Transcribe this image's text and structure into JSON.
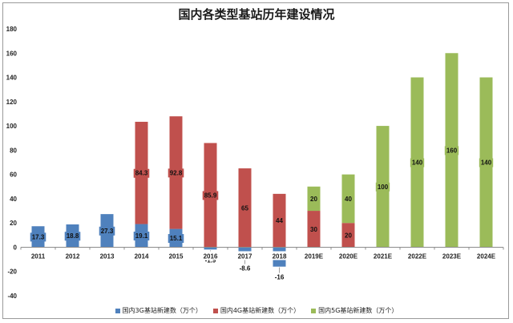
{
  "chart_data": {
    "type": "bar",
    "stacked": true,
    "title": "国内各类型基站历年建设情况",
    "categories": [
      "2011",
      "2012",
      "2013",
      "2014",
      "2015",
      "2016",
      "2017",
      "2018",
      "2019E",
      "2020E",
      "2021E",
      "2022E",
      "2023E",
      "2024E"
    ],
    "series": [
      {
        "name": "国内3G基站新建数（万个）",
        "color": "#4f81bd",
        "values": [
          17.3,
          18.8,
          27.3,
          19.1,
          15.1,
          -1.9,
          -8.6,
          -16,
          null,
          null,
          null,
          null,
          null,
          null
        ]
      },
      {
        "name": "国内4G基站新建数（万个）",
        "color": "#c0504d",
        "values": [
          null,
          null,
          null,
          84.3,
          92.8,
          85.9,
          65,
          44,
          30,
          20,
          null,
          null,
          null,
          null
        ]
      },
      {
        "name": "国内5G基站新建数（万个）",
        "color": "#9bbb59",
        "values": [
          null,
          null,
          null,
          null,
          null,
          null,
          null,
          null,
          20,
          40,
          100,
          140,
          160,
          140
        ]
      }
    ],
    "ylim": [
      -40,
      180
    ],
    "yticks": [
      -40,
      -20,
      0,
      20,
      40,
      60,
      80,
      100,
      120,
      140,
      160,
      180
    ],
    "grid": false,
    "legend": "bottom",
    "xlabel": "",
    "ylabel": ""
  }
}
